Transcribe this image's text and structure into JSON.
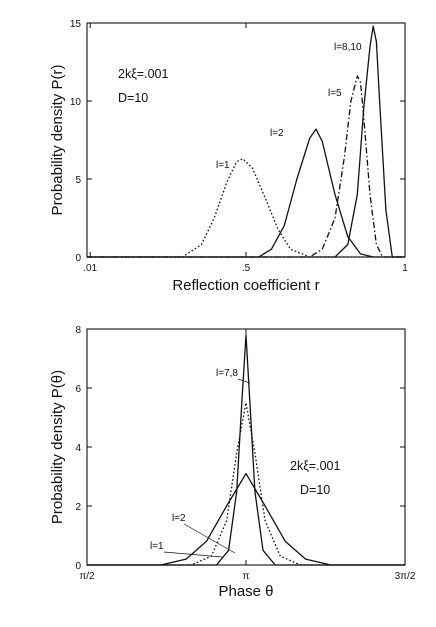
{
  "chart_data": [
    {
      "type": "line",
      "xlabel": "Reflection coefficient  r",
      "ylabel": "Probability density  P(r)",
      "xlim": [
        0,
        1
      ],
      "ylim": [
        0,
        15
      ],
      "xticks": [
        {
          "v": 0.01,
          "label": ".01"
        },
        {
          "v": 0.5,
          "label": ".5"
        },
        {
          "v": 1,
          "label": "1"
        }
      ],
      "yticks": [
        {
          "v": 0,
          "label": "0"
        },
        {
          "v": 5,
          "label": "5"
        },
        {
          "v": 10,
          "label": "10"
        },
        {
          "v": 15,
          "label": "15"
        }
      ],
      "annotations": [
        "2kξ=.001",
        "D=10"
      ],
      "series": [
        {
          "name": "l=1",
          "style": "dotted",
          "x": [
            0.3,
            0.36,
            0.4,
            0.44,
            0.47,
            0.49,
            0.52,
            0.56,
            0.6,
            0.64,
            0.7
          ],
          "y": [
            0.0,
            0.8,
            2.5,
            4.8,
            6.1,
            6.3,
            5.7,
            3.8,
            1.8,
            0.5,
            0.0
          ]
        },
        {
          "name": "l=2",
          "style": "solid",
          "x": [
            0.54,
            0.58,
            0.62,
            0.66,
            0.7,
            0.72,
            0.74,
            0.78,
            0.82,
            0.86,
            0.9
          ],
          "y": [
            0.0,
            0.5,
            2.0,
            5.0,
            7.6,
            8.2,
            7.4,
            4.0,
            1.3,
            0.2,
            0.0
          ]
        },
        {
          "name": "l=5",
          "style": "dashdot",
          "x": [
            0.7,
            0.74,
            0.78,
            0.81,
            0.83,
            0.85,
            0.86,
            0.87,
            0.89,
            0.91,
            0.93
          ],
          "y": [
            0.0,
            0.5,
            2.5,
            6.5,
            10.0,
            11.6,
            11.2,
            9.0,
            4.0,
            0.8,
            0.0
          ]
        },
        {
          "name": "l=8,10",
          "style": "solid",
          "x": [
            0.78,
            0.82,
            0.85,
            0.87,
            0.89,
            0.9,
            0.91,
            0.92,
            0.94,
            0.96
          ],
          "y": [
            0.0,
            0.8,
            4.0,
            9.5,
            13.5,
            14.8,
            13.8,
            10.0,
            3.0,
            0.0
          ]
        }
      ]
    },
    {
      "type": "line",
      "xlabel": "Phase θ",
      "ylabel": "Probability density  P(θ)",
      "xlim": [
        1.5708,
        4.7124
      ],
      "ylim": [
        0,
        8
      ],
      "xticks": [
        {
          "v": 1.5708,
          "label": "π/2"
        },
        {
          "v": 3.1416,
          "label": "π"
        },
        {
          "v": 4.7124,
          "label": "3π/2"
        }
      ],
      "yticks": [
        {
          "v": 0,
          "label": "0"
        },
        {
          "v": 2,
          "label": "2"
        },
        {
          "v": 4,
          "label": "4"
        },
        {
          "v": 6,
          "label": "6"
        },
        {
          "v": 8,
          "label": "8"
        }
      ],
      "annotations": [
        "2kξ=.001",
        "D=10"
      ],
      "series": [
        {
          "name": "l=1",
          "style": "solid",
          "x": [
            2.3,
            2.55,
            2.75,
            2.95,
            3.1416,
            3.33,
            3.53,
            3.73,
            3.98
          ],
          "y": [
            0.0,
            0.2,
            0.8,
            2.0,
            3.1,
            2.0,
            0.8,
            0.2,
            0.0
          ]
        },
        {
          "name": "l=2",
          "style": "dotted",
          "x": [
            2.6,
            2.8,
            2.95,
            3.05,
            3.1416,
            3.23,
            3.33,
            3.48,
            3.68
          ],
          "y": [
            0.0,
            0.3,
            1.5,
            3.8,
            5.5,
            3.8,
            1.5,
            0.3,
            0.0
          ]
        },
        {
          "name": "l=7,8",
          "style": "solid",
          "x": [
            2.85,
            2.97,
            3.05,
            3.1,
            3.1416,
            3.18,
            3.23,
            3.31,
            3.43
          ],
          "y": [
            0.0,
            0.5,
            2.5,
            5.5,
            7.8,
            5.5,
            2.5,
            0.5,
            0.0
          ]
        }
      ]
    }
  ]
}
